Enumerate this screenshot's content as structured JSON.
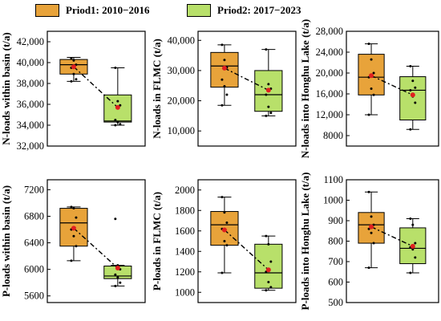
{
  "legend": [
    {
      "label": "Priod1: 2010−2016",
      "color": "#e8a33a"
    },
    {
      "label": "Priod2: 2017−2023",
      "color": "#b8e06a"
    }
  ],
  "chart_data": [
    {
      "type": "box",
      "ylabel": "N-loads within basin (t/a)",
      "ylim": [
        32000,
        43000
      ],
      "yticks": [
        "32,000",
        "34,000",
        "36,000",
        "38,000",
        "40,000",
        "42,000"
      ],
      "ytick_values": [
        32000,
        34000,
        36000,
        38000,
        40000,
        42000
      ],
      "series": [
        {
          "whisker_low": 38200,
          "q1": 38900,
          "median": 39800,
          "q3": 40300,
          "whisker_high": 40500,
          "mean": 39600,
          "points": [
            40400,
            40200,
            39800,
            39500,
            38900,
            38400,
            38200
          ]
        },
        {
          "whisker_low": 34000,
          "q1": 34300,
          "median": 34400,
          "q3": 36900,
          "whisker_high": 39500,
          "mean": 35700,
          "points": [
            39500,
            36300,
            35900,
            34500,
            34300,
            34100,
            34000
          ]
        }
      ]
    },
    {
      "type": "box",
      "ylabel": "N-loads in FLMC (t/a)",
      "ylim": [
        5000,
        43000
      ],
      "yticks": [
        "10,000",
        "20,000",
        "30,000",
        "40,000"
      ],
      "ytick_values": [
        10000,
        20000,
        30000,
        40000
      ],
      "series": [
        {
          "whisker_low": 18500,
          "q1": 24500,
          "median": 31500,
          "q3": 36000,
          "whisker_high": 38500,
          "mean": 30800,
          "points": [
            38500,
            33500,
            31000,
            27000,
            24800,
            22000,
            18500
          ]
        },
        {
          "whisker_low": 15000,
          "q1": 16500,
          "median": 22000,
          "q3": 30000,
          "whisker_high": 37000,
          "mean": 23500,
          "points": [
            37000,
            25500,
            24000,
            22000,
            18000,
            16000,
            15000
          ]
        }
      ]
    },
    {
      "type": "box",
      "ylabel": "N-loads into Honghu Lake (t/a)",
      "ylim": [
        6000,
        28000
      ],
      "yticks": [
        "8000",
        "12,000",
        "16,000",
        "20,000",
        "24,000",
        "28,000"
      ],
      "ytick_values": [
        8000,
        12000,
        16000,
        20000,
        24000,
        28000
      ],
      "series": [
        {
          "whisker_low": 12000,
          "q1": 15800,
          "median": 19200,
          "q3": 23600,
          "whisker_high": 25600,
          "mean": 19500,
          "points": [
            25600,
            22600,
            20000,
            19200,
            17000,
            15800,
            12000
          ]
        },
        {
          "whisker_low": 9200,
          "q1": 11000,
          "median": 16700,
          "q3": 19300,
          "whisker_high": 21300,
          "mean": 15800,
          "points": [
            21300,
            18500,
            17200,
            16700,
            15500,
            14300,
            9200
          ]
        }
      ]
    },
    {
      "type": "box",
      "ylabel": "P-loads within basin (t/a)",
      "ylim": [
        5500,
        7350
      ],
      "yticks": [
        "5600",
        "6000",
        "6400",
        "6800",
        "7200"
      ],
      "ytick_values": [
        5600,
        6000,
        6400,
        6800,
        7200
      ],
      "series": [
        {
          "whisker_low": 6130,
          "q1": 6350,
          "median": 6700,
          "q3": 6920,
          "whisker_high": 6940,
          "mean": 6620,
          "points": [
            6940,
            6920,
            6780,
            6600,
            6500,
            6350,
            6130
          ]
        },
        {
          "whisker_low": 5750,
          "q1": 5860,
          "median": 5900,
          "q3": 6050,
          "whisker_high": 6060,
          "mean": 6020,
          "points": [
            6760,
            6060,
            6000,
            5920,
            5880,
            5800,
            5750
          ]
        }
      ]
    },
    {
      "type": "box",
      "ylabel": "P-loads in FLMC (t/a)",
      "ylim": [
        900,
        2100
      ],
      "yticks": [
        "1000",
        "1200",
        "1400",
        "1600",
        "1800",
        "2000"
      ],
      "ytick_values": [
        1000,
        1200,
        1400,
        1600,
        1800,
        2000
      ],
      "series": [
        {
          "whisker_low": 1190,
          "q1": 1460,
          "median": 1660,
          "q3": 1790,
          "whisker_high": 1930,
          "mean": 1610,
          "points": [
            1930,
            1780,
            1680,
            1620,
            1500,
            1460,
            1190
          ]
        },
        {
          "whisker_low": 1020,
          "q1": 1040,
          "median": 1190,
          "q3": 1470,
          "whisker_high": 1550,
          "mean": 1220,
          "points": [
            1550,
            1470,
            1300,
            1200,
            1100,
            1050,
            1020
          ]
        }
      ]
    },
    {
      "type": "box",
      "ylabel": "P-loads into Honghu Lake (t/a)",
      "ylim": [
        500,
        1100
      ],
      "yticks": [
        "500",
        "600",
        "700",
        "800",
        "900",
        "1000",
        "1100"
      ],
      "ytick_values": [
        500,
        600,
        700,
        800,
        900,
        1000,
        1100
      ],
      "series": [
        {
          "whisker_low": 670,
          "q1": 790,
          "median": 880,
          "q3": 940,
          "whisker_high": 1040,
          "mean": 870,
          "points": [
            1040,
            920,
            880,
            860,
            840,
            790,
            670
          ]
        },
        {
          "whisker_low": 645,
          "q1": 690,
          "median": 765,
          "q3": 865,
          "whisker_high": 910,
          "mean": 775,
          "points": [
            910,
            880,
            790,
            770,
            760,
            720,
            645
          ]
        }
      ]
    }
  ]
}
